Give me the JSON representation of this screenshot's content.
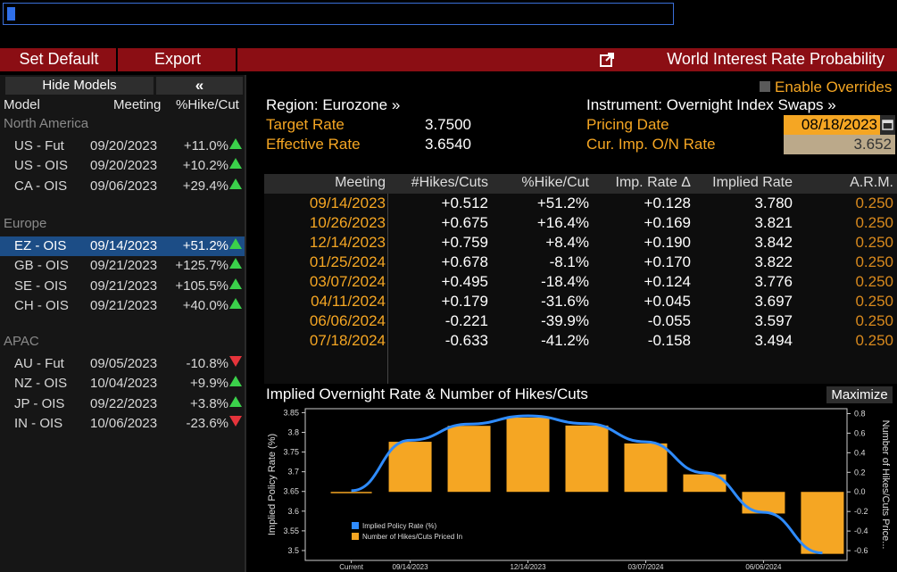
{
  "toolbar": {
    "set_default": "Set Default",
    "export": "Export",
    "title": "World Interest Rate Probability"
  },
  "left_panel": {
    "hide_models": "Hide Models",
    "collapse": "«",
    "columns": [
      "Model",
      "Meeting",
      "%Hike/Cut"
    ],
    "groups": [
      {
        "name": "North America",
        "rows": [
          {
            "model": "US - Fut",
            "meeting": "09/20/2023",
            "pct": "+11.0%",
            "dir": "up"
          },
          {
            "model": "US - OIS",
            "meeting": "09/20/2023",
            "pct": "+10.2%",
            "dir": "up"
          },
          {
            "model": "CA - OIS",
            "meeting": "09/06/2023",
            "pct": "+29.4%",
            "dir": "up"
          }
        ]
      },
      {
        "name": "Europe",
        "rows": [
          {
            "model": "EZ - OIS",
            "meeting": "09/14/2023",
            "pct": "+51.2%",
            "dir": "up",
            "selected": true
          },
          {
            "model": "GB - OIS",
            "meeting": "09/21/2023",
            "pct": "+125.7%",
            "dir": "up"
          },
          {
            "model": "SE - OIS",
            "meeting": "09/21/2023",
            "pct": "+105.5%",
            "dir": "up"
          },
          {
            "model": "CH - OIS",
            "meeting": "09/21/2023",
            "pct": "+40.0%",
            "dir": "up"
          }
        ]
      },
      {
        "name": "APAC",
        "rows": [
          {
            "model": "AU - Fut",
            "meeting": "09/05/2023",
            "pct": "-10.8%",
            "dir": "down"
          },
          {
            "model": "NZ - OIS",
            "meeting": "10/04/2023",
            "pct": "+9.9%",
            "dir": "up"
          },
          {
            "model": "JP - OIS",
            "meeting": "09/22/2023",
            "pct": "+3.8%",
            "dir": "up"
          },
          {
            "model": "IN - OIS",
            "meeting": "10/06/2023",
            "pct": "-23.6%",
            "dir": "down"
          }
        ]
      }
    ]
  },
  "info": {
    "region": "Region: Eurozone »",
    "target_rate_label": "Target Rate",
    "target_rate": "3.7500",
    "effective_rate_label": "Effective Rate",
    "effective_rate": "3.6540",
    "enable_overrides": "Enable Overrides",
    "instrument": "Instrument: Overnight Index Swaps »",
    "pricing_date_label": "Pricing Date",
    "pricing_date": "08/18/2023",
    "cur_imp_label": "Cur. Imp. O/N Rate",
    "cur_imp": "3.652"
  },
  "table": {
    "headers": [
      "Meeting",
      "#Hikes/Cuts",
      "%Hike/Cut",
      "Imp. Rate Δ",
      "Implied Rate",
      "A.R.M."
    ],
    "rows": [
      [
        "09/14/2023",
        "+0.512",
        "+51.2%",
        "+0.128",
        "3.780",
        "0.250"
      ],
      [
        "10/26/2023",
        "+0.675",
        "+16.4%",
        "+0.169",
        "3.821",
        "0.250"
      ],
      [
        "12/14/2023",
        "+0.759",
        "+8.4%",
        "+0.190",
        "3.842",
        "0.250"
      ],
      [
        "01/25/2024",
        "+0.678",
        "-8.1%",
        "+0.170",
        "3.822",
        "0.250"
      ],
      [
        "03/07/2024",
        "+0.495",
        "-18.4%",
        "+0.124",
        "3.776",
        "0.250"
      ],
      [
        "04/11/2024",
        "+0.179",
        "-31.6%",
        "+0.045",
        "3.697",
        "0.250"
      ],
      [
        "06/06/2024",
        "-0.221",
        "-39.9%",
        "-0.055",
        "3.597",
        "0.250"
      ],
      [
        "07/18/2024",
        "-0.633",
        "-41.2%",
        "-0.158",
        "3.494",
        "0.250"
      ]
    ]
  },
  "chart": {
    "title": "Implied Overnight Rate & Number of Hikes/Cuts",
    "maximize": "Maximize"
  },
  "chart_data": {
    "type": "bar",
    "categories": [
      "Current",
      "09/14/2023",
      "10/26/2023",
      "12/14/2023",
      "01/25/2024",
      "03/07/2024",
      "04/11/2024",
      "06/06/2024",
      "07/18/2024"
    ],
    "x_tick_labels": [
      "Current",
      "09/14/2023",
      "12/14/2023",
      "03/07/2024",
      "06/06/2024"
    ],
    "series": [
      {
        "name": "Implied Policy Rate (%)",
        "type": "line",
        "axis": "left",
        "color": "#2f8cff",
        "values": [
          3.652,
          3.78,
          3.821,
          3.842,
          3.822,
          3.776,
          3.697,
          3.597,
          3.494
        ]
      },
      {
        "name": "Number of Hikes/Cuts Priced In",
        "type": "bar",
        "axis": "right",
        "color": "#f5a623",
        "values": [
          0.0,
          0.512,
          0.675,
          0.759,
          0.678,
          0.495,
          0.179,
          -0.221,
          -0.633
        ]
      }
    ],
    "ylabel_left": "Implied Policy Rate (%)",
    "ylabel_right": "Number of Hikes/Cuts Price...",
    "ylim_left": [
      3.475,
      3.86
    ],
    "yticks_left": [
      "3.85",
      "3.8",
      "3.75",
      "3.7",
      "3.65",
      "3.6",
      "3.55",
      "3.5"
    ],
    "ylim_right": [
      -0.7,
      0.85
    ],
    "yticks_right": [
      "0.8",
      "0.6",
      "0.4",
      "0.2",
      "0.0",
      "-0.2",
      "-0.4",
      "-0.6"
    ],
    "legend_position": "bottom-left"
  }
}
